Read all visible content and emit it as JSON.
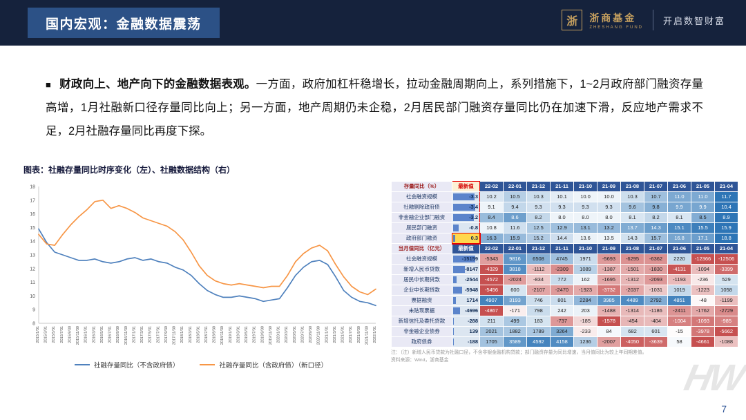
{
  "header": {
    "title": "国内宏观：金融数据震荡",
    "logo_glyph": "浙",
    "brand": "浙商基金",
    "brand_en": "ZHESHANG FUND",
    "slogan": "开启数智财富"
  },
  "paragraph": {
    "bullet": "■",
    "lead": "财政向上、地产向下的金融数据表观。",
    "body": "一方面，政府加杠杆稳增长，拉动金融周期向上，系列措施下，1~2月政府部门融资存量高增，1月社融新口径存量同比向上；另一方面，地产周期仍未企稳，2月居民部门融资存量同比仍在加速下滑，反应地产需求不足，2月社融存量同比再度下探。"
  },
  "figure_caption": "图表：社融存量同比时序变化（左）、社融数据结构（右）",
  "chart_data": {
    "type": "line",
    "title": "社融存量同比时序变化",
    "xlabel": "",
    "ylabel": "",
    "ylim": [
      8,
      18
    ],
    "grid": false,
    "legend_position": "bottom",
    "x": [
      "2015/1/31",
      "2015/3/31",
      "2015/5/31",
      "2015/7/31",
      "2015/9/30",
      "2015/11/30",
      "2016/1/31",
      "2016/3/31",
      "2016/5/31",
      "2016/7/31",
      "2016/9/30",
      "2016/11/30",
      "2017/1/31",
      "2017/3/31",
      "2017/5/31",
      "2017/7/31",
      "2017/9/30",
      "2017/11/30",
      "2018/1/31",
      "2018/3/31",
      "2018/5/31",
      "2018/7/31",
      "2018/9/30",
      "2018/11/30",
      "2019/1/31",
      "2019/3/31",
      "2019/5/31",
      "2019/7/31",
      "2019/9/30",
      "2019/11/30",
      "2020/1/31",
      "2020/3/31",
      "2020/5/31",
      "2020/7/31",
      "2020/9/30",
      "2020/11/30",
      "2021/1/31",
      "2021/3/31",
      "2021/5/31",
      "2021/7/31",
      "2021/9/30",
      "2021/11/30",
      "2022/1/31"
    ],
    "series": [
      {
        "name": "社融存量同比（不含政府债）",
        "color": "#4F81BD",
        "values": [
          14.9,
          13.9,
          13.2,
          13.0,
          12.8,
          12.6,
          12.6,
          12.7,
          12.5,
          12.4,
          12.5,
          12.7,
          12.8,
          12.6,
          12.7,
          12.5,
          12.4,
          12.1,
          11.9,
          11.5,
          10.9,
          10.4,
          10.1,
          9.9,
          9.9,
          10.0,
          9.9,
          9.8,
          9.6,
          9.7,
          9.8,
          10.6,
          11.5,
          12.1,
          12.5,
          12.6,
          12.3,
          11.4,
          10.4,
          9.9,
          9.6,
          9.5,
          9.3
        ]
      },
      {
        "name": "社融存量同比（含政府债）（新口径）",
        "color": "#F79646",
        "values": [
          14.5,
          13.8,
          13.7,
          14.5,
          15.2,
          15.8,
          16.3,
          16.9,
          17.0,
          16.4,
          16.6,
          16.4,
          16.1,
          15.7,
          15.5,
          15.3,
          15.1,
          14.7,
          14.1,
          13.2,
          12.2,
          11.5,
          11.1,
          10.9,
          10.8,
          10.9,
          10.8,
          10.7,
          10.6,
          10.7,
          10.7,
          11.5,
          12.5,
          13.1,
          13.5,
          13.7,
          13.3,
          12.3,
          11.4,
          10.7,
          10.3,
          10.1,
          10.5
        ]
      }
    ]
  },
  "table": {
    "latest_label": "最新值",
    "columns": [
      "22-02",
      "22-01",
      "21-12",
      "21-11",
      "21-10",
      "21-09",
      "21-08",
      "21-07",
      "21-06",
      "21-05",
      "21-04"
    ],
    "sections": [
      {
        "title": "存量同比（%）",
        "decimals": 1,
        "rows": [
          {
            "label": "社会融资规模",
            "latest": "-3.3",
            "values": [
              10.2,
              10.5,
              10.3,
              10.1,
              10.0,
              10.0,
              10.3,
              10.7,
              11.0,
              11.0,
              11.7
            ]
          },
          {
            "label": "社融剔除政府债",
            "latest": "-3.4",
            "values": [
              9.1,
              9.4,
              9.3,
              9.3,
              9.3,
              9.3,
              9.6,
              9.8,
              9.9,
              9.9,
              10.4
            ]
          },
          {
            "label": "非金融企业部门融资",
            "latest": "-3.2",
            "values": [
              8.4,
              8.6,
              8.2,
              8.0,
              8.0,
              8.0,
              8.1,
              8.2,
              8.1,
              8.5,
              8.9
            ]
          },
          {
            "label": "居民部门融资",
            "latest": "-0.8",
            "values": [
              10.8,
              11.6,
              12.5,
              12.9,
              13.1,
              13.2,
              13.7,
              14.3,
              15.1,
              15.5,
              15.9
            ]
          },
          {
            "label": "政府部门融资",
            "latest": "0.3",
            "highlight": true,
            "values": [
              16.3,
              15.9,
              15.2,
              14.4,
              13.6,
              13.5,
              14.3,
              15.7,
              16.8,
              17.1,
              18.8
            ]
          }
        ]
      },
      {
        "title": "当月值同比（亿元）",
        "decimals": 0,
        "rows": [
          {
            "label": "社会融资规模",
            "latest": "-15159",
            "values": [
              -5343,
              9816,
              6508,
              4745,
              1971,
              -5693,
              -6295,
              -6362,
              2220,
              -12366,
              -12506
            ]
          },
          {
            "label": "新增人民币贷款",
            "latest": "-8147",
            "values": [
              -4329,
              3818,
              -1112,
              -2309,
              1089,
              -1387,
              -1501,
              -1830,
              -4131,
              -1094,
              -3399
            ]
          },
          {
            "label": "居民中长期贷款",
            "latest": "-2544",
            "values": [
              -4572,
              -2024,
              -834,
              772,
              162,
              -1695,
              -1312,
              -2093,
              -1193,
              -236,
              529
            ]
          },
          {
            "label": "企业中长期贷款",
            "latest": "-5948",
            "values": [
              -5456,
              600,
              -2107,
              -2470,
              -1923,
              -3732,
              -2037,
              -1031,
              1019,
              -1223,
              1058
            ]
          },
          {
            "label": "票据融资",
            "latest": "1714",
            "values": [
              4907,
              3193,
              746,
              801,
              2284,
              3985,
              4489,
              2792,
              4851,
              -48,
              -1199
            ]
          },
          {
            "label": "未贴现票据",
            "latest": "-4696",
            "values": [
              -4867,
              -171,
              798,
              242,
              203,
              -1488,
              -1314,
              -1186,
              -2411,
              -1762,
              -2729
            ]
          },
          {
            "label": "新增信托及委托贷款",
            "latest": "-288",
            "values": [
              211,
              499,
              183,
              -737,
              -185,
              -1578,
              -454,
              -404,
              -1004,
              -1093,
              -985
            ]
          },
          {
            "label": "非金融企业债券",
            "latest": "139",
            "values": [
              2021,
              1882,
              1789,
              3264,
              -233,
              84,
              682,
              601,
              -15,
              -3978,
              -5662
            ]
          },
          {
            "label": "政府债券",
            "latest": "-188",
            "values": [
              1705,
              3589,
              4592,
              4158,
              1236,
              -2007,
              -4050,
              -3639,
              58,
              -4661,
              -1088
            ]
          }
        ]
      }
    ],
    "note": "注：（注）新增人民币贷款为社融口径，不含非银金融机构贷款；部门融资存量为同比增速，当月值同比为较上年同期差值。",
    "source": "资料来源：Wind，浙商基金"
  },
  "footer": {
    "page_number": "7",
    "watermark": "HW"
  },
  "colors": {
    "header_bg": "#15223C",
    "title_box_bg": "#2C5186",
    "brand_gold": "#C7A15F",
    "table_header_blue": "#2F5597",
    "heat_blue": "#2E75B6",
    "heat_red": "#C03C3C",
    "highlight_yellow": "#FFD84D",
    "series_blue": "#4F81BD",
    "series_orange": "#F79646"
  }
}
